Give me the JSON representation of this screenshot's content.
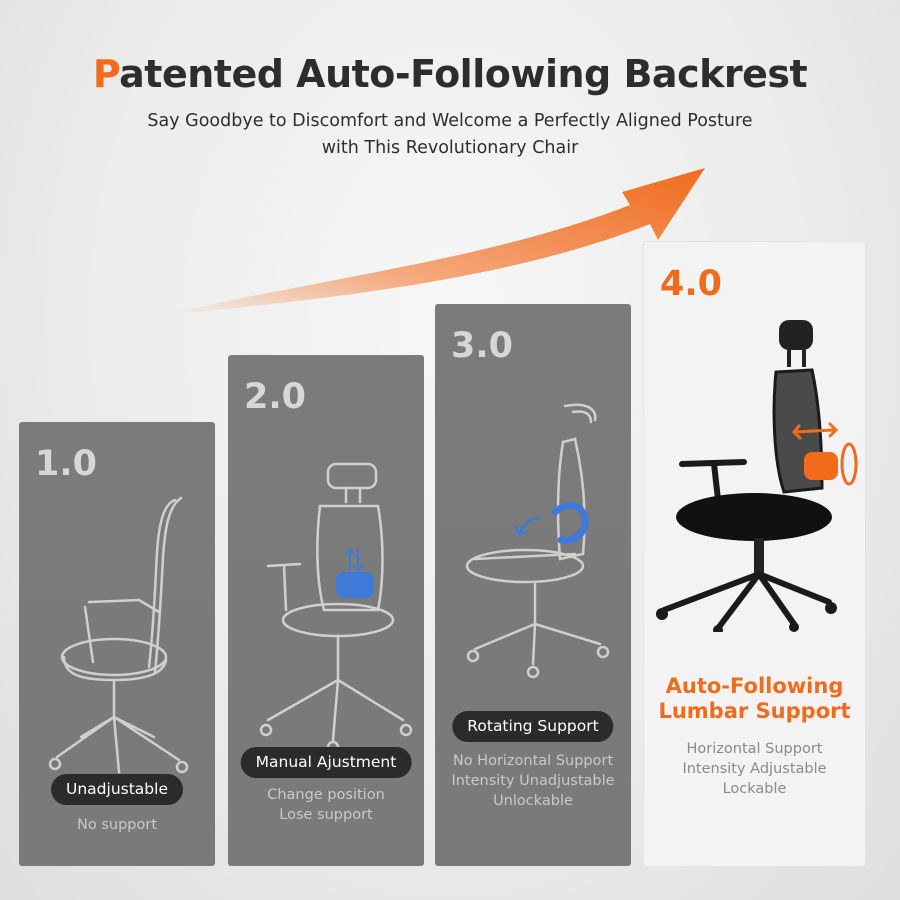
{
  "header": {
    "title_accent": "P",
    "title_rest": "atented Auto-Following Backrest",
    "subtitle_line1": "Say Goodbye to Discomfort and Welcome a Perfectly Aligned Posture",
    "subtitle_line2": "with This Revolutionary Chair"
  },
  "colors": {
    "accent": "#f26b1d",
    "panel": "#7b7b7b",
    "pill": "#2b2b2b"
  },
  "panels": [
    {
      "version": "1.0",
      "label": "Unadjustable",
      "desc": [
        "No support"
      ]
    },
    {
      "version": "2.0",
      "label": "Manual Ajustment",
      "desc": [
        "Change position",
        "Lose support"
      ]
    },
    {
      "version": "3.0",
      "label": "Rotating Support",
      "desc": [
        "No Horizontal Support",
        "Intensity Unadjustable",
        "Unlockable"
      ]
    },
    {
      "version": "4.0",
      "feature_line1": "Auto-Following",
      "feature_line2": "Lumbar Support",
      "desc": [
        "Horizontal Support",
        "Intensity Adjustable",
        "Lockable"
      ]
    }
  ]
}
